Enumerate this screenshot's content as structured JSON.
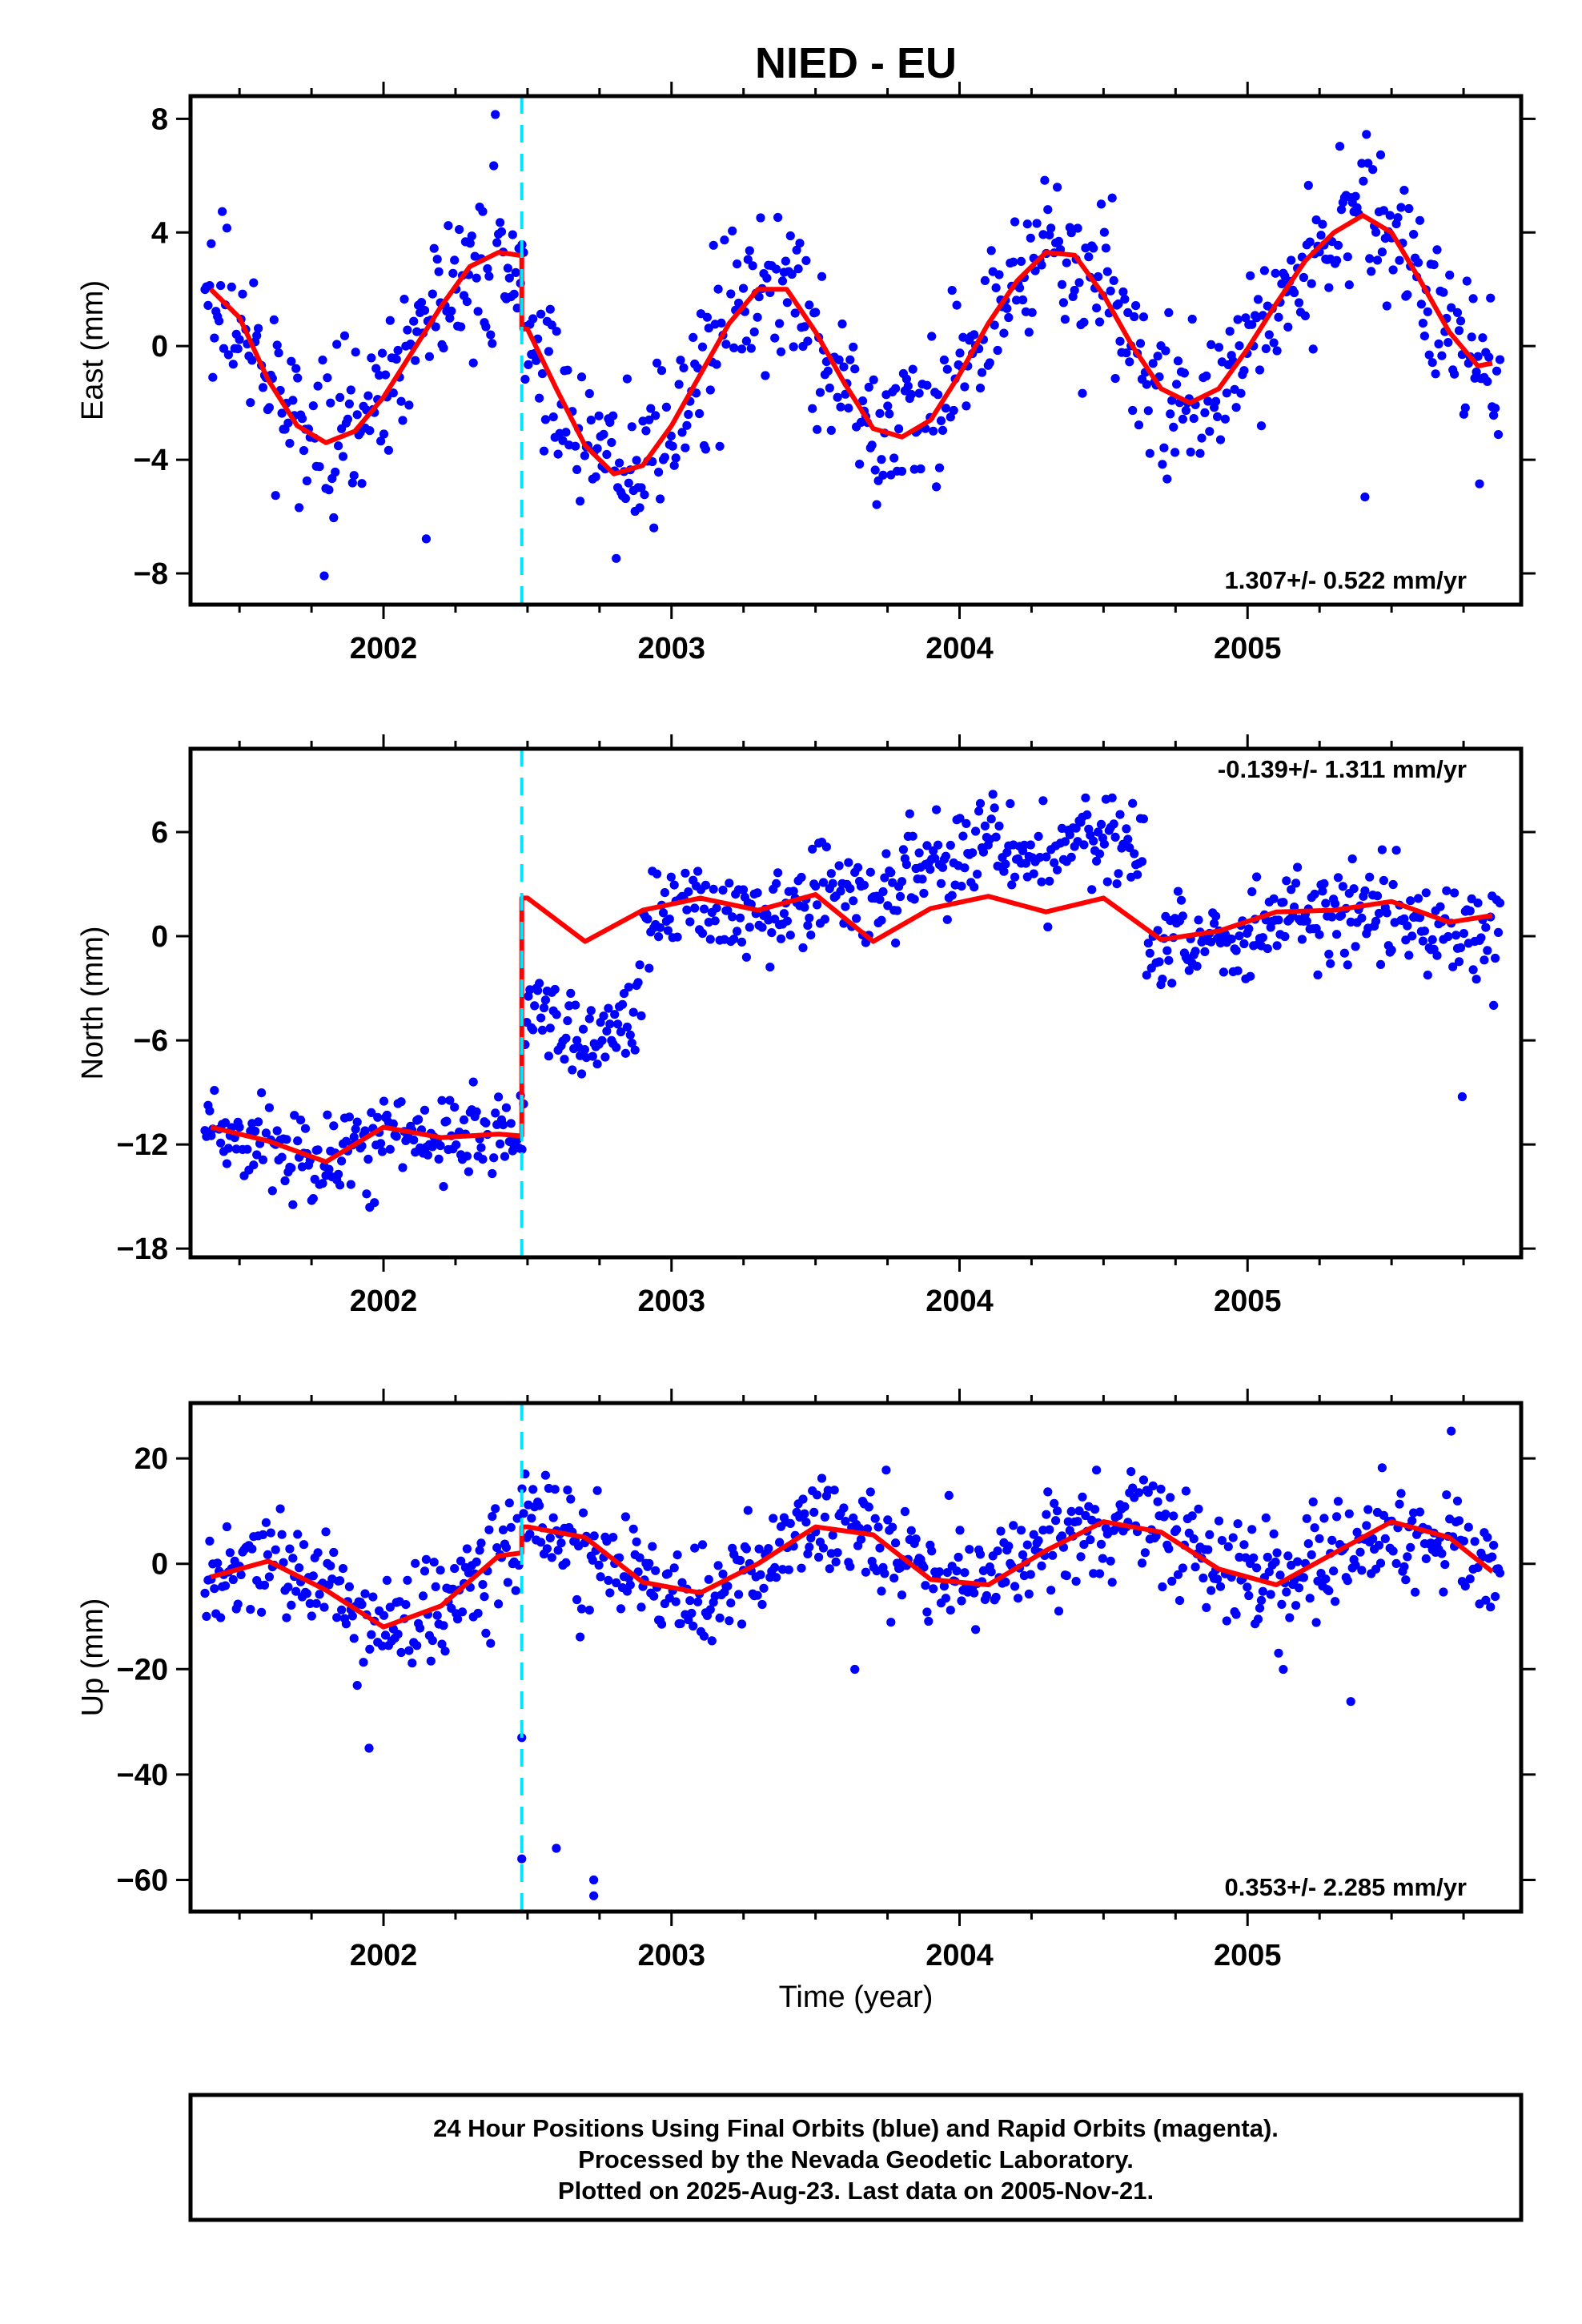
{
  "title": "NIED - EU",
  "xlabel": "Time (year)",
  "footer_lines": [
    "24 Hour Positions Using Final Orbits (blue) and Rapid Orbits (magenta).",
    "Processed by the Nevada Geodetic Laboratory.",
    "Plotted on 2025-Aug-23. Last data on 2005-Nov-21."
  ],
  "colors": {
    "data": "#0000ff",
    "model": "#ff0000",
    "offset_marker": "#00e5ff",
    "frame": "#000000"
  },
  "chart_data": [
    {
      "type": "scatter",
      "ylabel": "East (mm)",
      "rate_label": "1.307+/- 0.522 mm/yr",
      "rate_position": "bottom-right",
      "xlim": [
        2001.33,
        2005.95
      ],
      "ylim": [
        -9.1,
        8.8
      ],
      "xticks": [
        2002,
        2003,
        2004,
        2005
      ],
      "yticks": [
        -8,
        -4,
        0,
        4,
        8
      ],
      "ytick_labels": [
        "−8",
        "−4",
        "0",
        "4",
        "8"
      ],
      "offset_epoch": 2002.48,
      "model": {
        "rate": 1.307,
        "seg1": {
          "c": -0.3,
          "a": 2.7,
          "a2": 0.5
        },
        "seg2": {
          "c": -2.5,
          "a": 2.7,
          "a2": 0.5
        },
        "phase": 0.55,
        "step_at": 2002.48,
        "noise": 1.35
      },
      "series": [
        {
          "name": "",
          "x": [
            2001.4,
            2001.5,
            2001.6,
            2001.7,
            2001.8,
            2001.9,
            2002.0,
            2002.1,
            2002.2,
            2002.3,
            2002.4,
            2002.47,
            2002.5,
            2002.6,
            2002.7,
            2002.8,
            2002.9,
            2003.0,
            2003.1,
            2003.2,
            2003.3,
            2003.4,
            2003.5,
            2003.6,
            2003.7,
            2003.8,
            2003.9,
            2004.0,
            2004.1,
            2004.2,
            2004.3,
            2004.4,
            2004.5,
            2004.6,
            2004.7,
            2004.8,
            2004.9,
            2005.0,
            2005.1,
            2005.2,
            2005.3,
            2005.4,
            2005.5,
            2005.6,
            2005.7,
            2005.8,
            2005.85
          ],
          "y": [
            2.0,
            1.0,
            -1.2,
            -2.8,
            -3.4,
            -3.0,
            -1.8,
            -0.2,
            1.4,
            2.8,
            3.3,
            3.2,
            0.6,
            -1.5,
            -3.5,
            -4.5,
            -4.2,
            -2.8,
            -1.0,
            0.8,
            2.0,
            2.0,
            0.5,
            -1.3,
            -2.9,
            -3.2,
            -2.6,
            -1.0,
            0.8,
            2.3,
            3.3,
            3.2,
            1.8,
            0.0,
            -1.5,
            -2.0,
            -1.5,
            -0.1,
            1.5,
            3.0,
            4.0,
            4.6,
            4.0,
            2.3,
            0.5,
            -0.7,
            -0.6
          ]
        }
      ]
    },
    {
      "type": "scatter",
      "ylabel": "North (mm)",
      "rate_label": "-0.139+/- 1.311 mm/yr",
      "rate_position": "top-right",
      "xlim": [
        2001.33,
        2005.95
      ],
      "ylim": [
        -18.5,
        10.8
      ],
      "xticks": [
        2002,
        2003,
        2004,
        2005
      ],
      "yticks": [
        -18,
        -12,
        -6,
        0,
        6
      ],
      "ytick_labels": [
        "−18",
        "−12",
        "−6",
        "0",
        "6"
      ],
      "offset_epoch": 2002.48,
      "model": {
        "rate": -0.139,
        "seg1": {
          "c": -11.9,
          "a": 1.4,
          "a2": 0.3
        },
        "seg2": {
          "c": 1.2,
          "a": 1.4,
          "a2": 0.3
        },
        "phase": 0.1,
        "step_at": 2002.48,
        "noise": 1.25,
        "data_offsets": [
          [
            2001.33,
            2002.48,
            0.0
          ],
          [
            2002.48,
            2002.9,
            -6.0
          ],
          [
            2002.9,
            2003.5,
            -0.5
          ],
          [
            2003.5,
            2004.65,
            2.8
          ],
          [
            2004.65,
            2005.95,
            -0.6
          ]
        ],
        "data_trend": [
          [
            2003.5,
            2004.65,
            2.5
          ]
        ]
      },
      "series": [
        {
          "name": "",
          "x": [
            2001.4,
            2001.6,
            2001.8,
            2002.0,
            2002.2,
            2002.4,
            2002.47,
            2002.5,
            2002.7,
            2002.9,
            2003.1,
            2003.3,
            2003.5,
            2003.7,
            2003.9,
            2004.1,
            2004.3,
            2004.5,
            2004.7,
            2004.9,
            2005.1,
            2005.3,
            2005.5,
            2005.7,
            2005.85
          ],
          "y": [
            -11.0,
            -11.8,
            -13.0,
            -11.0,
            -11.6,
            -11.4,
            -11.5,
            2.2,
            -0.3,
            1.5,
            2.2,
            1.5,
            2.4,
            -0.3,
            1.6,
            2.3,
            1.4,
            2.2,
            -0.2,
            0.3,
            1.4,
            1.5,
            2.0,
            0.8,
            1.2
          ]
        }
      ]
    },
    {
      "type": "scatter",
      "ylabel": "Up (mm)",
      "rate_label": "0.353+/- 2.285 mm/yr",
      "rate_position": "bottom-right",
      "xlim": [
        2001.33,
        2005.95
      ],
      "ylim": [
        -66,
        30.5
      ],
      "xticks": [
        2002,
        2003,
        2004,
        2005
      ],
      "yticks": [
        -60,
        -40,
        -20,
        0,
        20
      ],
      "ytick_labels": [
        "−60",
        "−40",
        "−20",
        "0",
        "20"
      ],
      "offset_epoch": 2002.48,
      "model": {
        "rate": 0.353,
        "seg1": {
          "c": -5.5,
          "a": 6.5,
          "a2": 2.5
        },
        "seg2": {
          "c": -0.5,
          "a": 6.5,
          "a2": 2.0
        },
        "phase": 0.3,
        "step_at": 2002.48,
        "noise": 5.0,
        "outliers": [
          [
            2002.48,
            -33
          ],
          [
            2002.48,
            -56
          ],
          [
            2002.6,
            -54
          ],
          [
            2002.73,
            -63
          ],
          [
            2002.73,
            -60
          ],
          [
            2001.95,
            -35
          ]
        ]
      },
      "series": [
        {
          "name": "",
          "x": [
            2001.4,
            2001.6,
            2001.8,
            2002.0,
            2002.2,
            2002.4,
            2002.47,
            2002.5,
            2002.7,
            2002.9,
            2003.1,
            2003.3,
            2003.5,
            2003.7,
            2003.9,
            2004.1,
            2004.3,
            2004.5,
            2004.7,
            2004.9,
            2005.1,
            2005.3,
            2005.5,
            2005.7,
            2005.85
          ],
          "y": [
            -2.5,
            0.5,
            -5.0,
            -12.0,
            -8.0,
            1.5,
            2.0,
            7.0,
            5.0,
            -3.5,
            -5.5,
            0.0,
            7.0,
            5.5,
            -3.0,
            -4.0,
            2.5,
            8.0,
            6.0,
            -1.0,
            -4.0,
            2.0,
            8.0,
            5.0,
            -1.5
          ]
        }
      ]
    }
  ]
}
